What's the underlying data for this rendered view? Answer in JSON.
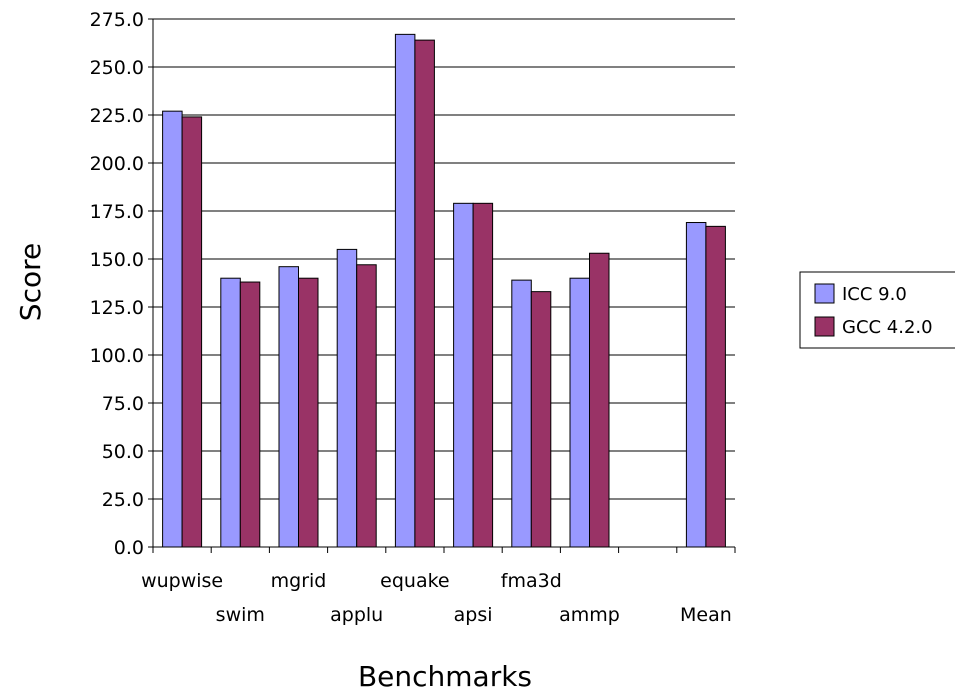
{
  "chart_data": {
    "type": "bar",
    "title": "",
    "xlabel": "Benchmarks",
    "ylabel": "Score",
    "ylim": [
      0,
      275
    ],
    "ytick_step": 25,
    "ytick_labels": [
      "0.0",
      "25.0",
      "50.0",
      "75.0",
      "100.0",
      "125.0",
      "150.0",
      "175.0",
      "200.0",
      "225.0",
      "250.0",
      "275.0"
    ],
    "grid": true,
    "legend_position": "right",
    "categories": [
      "wupwise",
      "swim",
      "mgrid",
      "applu",
      "equake",
      "apsi",
      "fma3d",
      "ammp",
      "",
      "Mean"
    ],
    "series": [
      {
        "name": "ICC 9.0",
        "color": "#9999ff",
        "values": [
          227,
          140,
          146,
          155,
          267,
          179,
          139,
          140,
          null,
          169
        ]
      },
      {
        "name": "GCC 4.2.0",
        "color": "#993366",
        "values": [
          224,
          138,
          140,
          147,
          264,
          179,
          133,
          153,
          null,
          167
        ]
      }
    ]
  }
}
